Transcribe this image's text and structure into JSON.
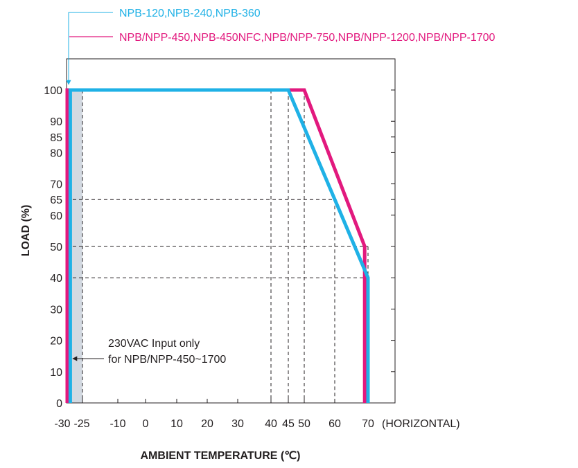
{
  "chart_data": {
    "type": "line",
    "xlabel": "AMBIENT TEMPERATURE (℃)",
    "ylabel": "LOAD (%)",
    "x_suffix": "(HORIZONTAL)",
    "xlim": [
      -30,
      75
    ],
    "ylim": [
      0,
      110
    ],
    "x_ticks": [
      -30,
      -25,
      -10,
      0,
      10,
      20,
      30,
      40,
      45,
      50,
      60,
      70
    ],
    "x_tick_labels": [
      "-30",
      "-25",
      "-10",
      "0",
      "10",
      "20",
      "30",
      "40",
      "45",
      "50",
      "60",
      "70"
    ],
    "y_ticks": [
      0,
      10,
      20,
      30,
      40,
      50,
      60,
      65,
      70,
      80,
      85,
      90,
      100
    ],
    "y_tick_labels": [
      "0",
      "10",
      "20",
      "30",
      "40",
      "50",
      "60",
      "65",
      "70",
      "80",
      "85",
      "90",
      "100"
    ],
    "guides": [
      {
        "x": 40,
        "y": 100
      },
      {
        "x": 45,
        "y": 100
      },
      {
        "x": 50,
        "y": 100
      },
      {
        "x": 60,
        "y": 65
      },
      {
        "x": 70,
        "y": 50
      },
      {
        "x": 70,
        "y": 40
      }
    ],
    "shaded_band": {
      "x": [
        -30,
        -25
      ]
    },
    "series": [
      {
        "name": "NPB-120,NPB-240,NPB-360",
        "color": "#1fb1e6",
        "points": [
          [
            -29,
            0
          ],
          [
            -29,
            100
          ],
          [
            45,
            100
          ],
          [
            70,
            40
          ],
          [
            70,
            0
          ]
        ]
      },
      {
        "name": "NPB/NPP-450,NPB-450NFC,NPB/NPP-750,NPB/NPP-1200,NPB/NPP-1700",
        "color": "#e2197e",
        "points": [
          [
            -30,
            0
          ],
          [
            -30,
            100
          ],
          [
            50,
            100
          ],
          [
            69,
            50
          ],
          [
            69,
            0
          ]
        ]
      }
    ],
    "annotation": {
      "lines": [
        "230VAC Input only",
        "for NPB/NPP-450~1700"
      ],
      "x_from": -30,
      "x_to": -25
    }
  }
}
